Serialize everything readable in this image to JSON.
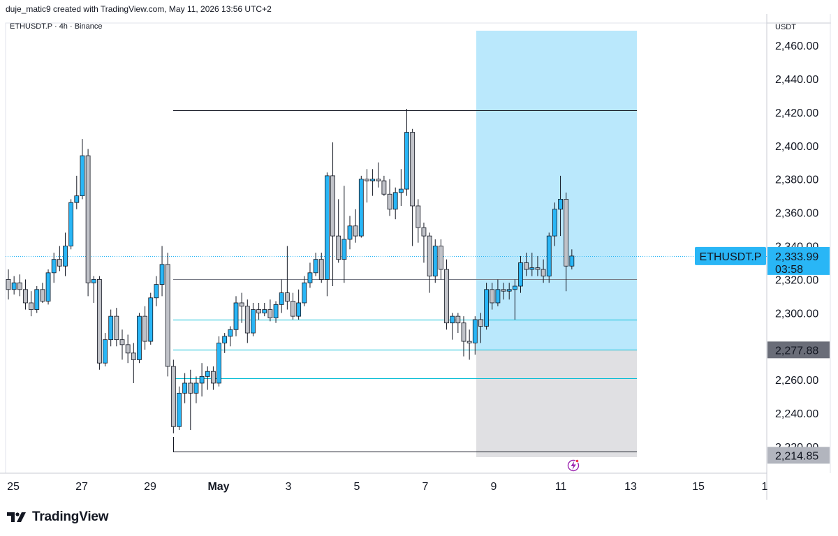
{
  "header": {
    "credit": "duje_matic9 created with TradingView.com, May 11, 2026 13:56 UTC+2"
  },
  "brand": {
    "name": "TradingView",
    "logo_icon": "tradingview-logo-icon"
  },
  "chart_data": {
    "type": "candlestick",
    "symbol_label": "ETHUSDT.P · 4h · Binance",
    "currency": "USDT",
    "ylim": [
      2208,
      2468
    ],
    "y_ticks": [
      "2,460.00",
      "2,440.00",
      "2,420.00",
      "2,400.00",
      "2,380.00",
      "2,360.00",
      "2,340.00",
      "2,320.00",
      "2,300.00",
      "2,280.00",
      "2,260.00",
      "2,240.00",
      "2,220.00"
    ],
    "y_tick_values": [
      2460,
      2440,
      2420,
      2400,
      2380,
      2360,
      2340,
      2320,
      2300,
      2280,
      2260,
      2240,
      2220
    ],
    "x_ticks": [
      {
        "label": "25",
        "bold": false
      },
      {
        "label": "27",
        "bold": false
      },
      {
        "label": "29",
        "bold": false
      },
      {
        "label": "May",
        "bold": true
      },
      {
        "label": "3",
        "bold": false
      },
      {
        "label": "5",
        "bold": false
      },
      {
        "label": "7",
        "bold": false
      },
      {
        "label": "9",
        "bold": false
      },
      {
        "label": "11",
        "bold": false
      },
      {
        "label": "13",
        "bold": false
      },
      {
        "label": "15",
        "bold": false
      },
      {
        "label": "1",
        "bold": false
      }
    ],
    "candles": [
      {
        "o": 2320,
        "h": 2326,
        "l": 2308,
        "c": 2314
      },
      {
        "o": 2314,
        "h": 2322,
        "l": 2311,
        "c": 2318
      },
      {
        "o": 2318,
        "h": 2323,
        "l": 2310,
        "c": 2314
      },
      {
        "o": 2314,
        "h": 2320,
        "l": 2302,
        "c": 2306
      },
      {
        "o": 2306,
        "h": 2313,
        "l": 2298,
        "c": 2302
      },
      {
        "o": 2302,
        "h": 2316,
        "l": 2300,
        "c": 2314
      },
      {
        "o": 2314,
        "h": 2318,
        "l": 2306,
        "c": 2307
      },
      {
        "o": 2307,
        "h": 2326,
        "l": 2305,
        "c": 2324
      },
      {
        "o": 2324,
        "h": 2336,
        "l": 2318,
        "c": 2332
      },
      {
        "o": 2332,
        "h": 2340,
        "l": 2325,
        "c": 2328
      },
      {
        "o": 2328,
        "h": 2348,
        "l": 2322,
        "c": 2340
      },
      {
        "o": 2340,
        "h": 2368,
        "l": 2338,
        "c": 2366
      },
      {
        "o": 2366,
        "h": 2382,
        "l": 2362,
        "c": 2370
      },
      {
        "o": 2370,
        "h": 2404,
        "l": 2368,
        "c": 2394
      },
      {
        "o": 2394,
        "h": 2398,
        "l": 2310,
        "c": 2318
      },
      {
        "o": 2318,
        "h": 2322,
        "l": 2306,
        "c": 2320
      },
      {
        "o": 2320,
        "h": 2322,
        "l": 2266,
        "c": 2270
      },
      {
        "o": 2270,
        "h": 2288,
        "l": 2268,
        "c": 2284
      },
      {
        "o": 2284,
        "h": 2302,
        "l": 2280,
        "c": 2298
      },
      {
        "o": 2298,
        "h": 2303,
        "l": 2280,
        "c": 2284
      },
      {
        "o": 2284,
        "h": 2290,
        "l": 2272,
        "c": 2281
      },
      {
        "o": 2281,
        "h": 2287,
        "l": 2270,
        "c": 2276
      },
      {
        "o": 2276,
        "h": 2282,
        "l": 2258,
        "c": 2272
      },
      {
        "o": 2272,
        "h": 2300,
        "l": 2270,
        "c": 2298
      },
      {
        "o": 2298,
        "h": 2304,
        "l": 2278,
        "c": 2283
      },
      {
        "o": 2283,
        "h": 2312,
        "l": 2281,
        "c": 2309
      },
      {
        "o": 2309,
        "h": 2322,
        "l": 2304,
        "c": 2317
      },
      {
        "o": 2317,
        "h": 2340,
        "l": 2310,
        "c": 2329
      },
      {
        "o": 2329,
        "h": 2336,
        "l": 2262,
        "c": 2268
      },
      {
        "o": 2268,
        "h": 2272,
        "l": 2228,
        "c": 2232
      },
      {
        "o": 2232,
        "h": 2256,
        "l": 2230,
        "c": 2252
      },
      {
        "o": 2252,
        "h": 2264,
        "l": 2246,
        "c": 2258
      },
      {
        "o": 2258,
        "h": 2266,
        "l": 2230,
        "c": 2252
      },
      {
        "o": 2252,
        "h": 2262,
        "l": 2246,
        "c": 2258
      },
      {
        "o": 2258,
        "h": 2270,
        "l": 2250,
        "c": 2262
      },
      {
        "o": 2262,
        "h": 2268,
        "l": 2254,
        "c": 2265
      },
      {
        "o": 2265,
        "h": 2268,
        "l": 2254,
        "c": 2258
      },
      {
        "o": 2258,
        "h": 2286,
        "l": 2256,
        "c": 2282
      },
      {
        "o": 2282,
        "h": 2288,
        "l": 2276,
        "c": 2286
      },
      {
        "o": 2286,
        "h": 2292,
        "l": 2280,
        "c": 2290
      },
      {
        "o": 2290,
        "h": 2310,
        "l": 2286,
        "c": 2306
      },
      {
        "o": 2306,
        "h": 2312,
        "l": 2294,
        "c": 2304
      },
      {
        "o": 2304,
        "h": 2308,
        "l": 2282,
        "c": 2288
      },
      {
        "o": 2288,
        "h": 2306,
        "l": 2286,
        "c": 2302
      },
      {
        "o": 2302,
        "h": 2306,
        "l": 2296,
        "c": 2300
      },
      {
        "o": 2300,
        "h": 2306,
        "l": 2298,
        "c": 2302
      },
      {
        "o": 2302,
        "h": 2308,
        "l": 2295,
        "c": 2297
      },
      {
        "o": 2297,
        "h": 2307,
        "l": 2294,
        "c": 2305
      },
      {
        "o": 2305,
        "h": 2320,
        "l": 2300,
        "c": 2312
      },
      {
        "o": 2312,
        "h": 2340,
        "l": 2302,
        "c": 2307
      },
      {
        "o": 2307,
        "h": 2312,
        "l": 2296,
        "c": 2298
      },
      {
        "o": 2298,
        "h": 2314,
        "l": 2296,
        "c": 2306
      },
      {
        "o": 2306,
        "h": 2322,
        "l": 2304,
        "c": 2318
      },
      {
        "o": 2318,
        "h": 2330,
        "l": 2315,
        "c": 2324
      },
      {
        "o": 2324,
        "h": 2336,
        "l": 2322,
        "c": 2332
      },
      {
        "o": 2332,
        "h": 2336,
        "l": 2318,
        "c": 2320
      },
      {
        "o": 2320,
        "h": 2384,
        "l": 2310,
        "c": 2382
      },
      {
        "o": 2382,
        "h": 2402,
        "l": 2316,
        "c": 2346
      },
      {
        "o": 2346,
        "h": 2368,
        "l": 2330,
        "c": 2332
      },
      {
        "o": 2332,
        "h": 2376,
        "l": 2318,
        "c": 2344
      },
      {
        "o": 2344,
        "h": 2358,
        "l": 2338,
        "c": 2352
      },
      {
        "o": 2352,
        "h": 2362,
        "l": 2342,
        "c": 2346
      },
      {
        "o": 2346,
        "h": 2382,
        "l": 2345,
        "c": 2380
      },
      {
        "o": 2380,
        "h": 2386,
        "l": 2366,
        "c": 2379
      },
      {
        "o": 2379,
        "h": 2386,
        "l": 2370,
        "c": 2380
      },
      {
        "o": 2380,
        "h": 2390,
        "l": 2375,
        "c": 2379
      },
      {
        "o": 2379,
        "h": 2382,
        "l": 2370,
        "c": 2371
      },
      {
        "o": 2371,
        "h": 2380,
        "l": 2358,
        "c": 2362
      },
      {
        "o": 2362,
        "h": 2375,
        "l": 2356,
        "c": 2372
      },
      {
        "o": 2372,
        "h": 2386,
        "l": 2364,
        "c": 2374
      },
      {
        "o": 2374,
        "h": 2422,
        "l": 2370,
        "c": 2408
      },
      {
        "o": 2408,
        "h": 2410,
        "l": 2340,
        "c": 2364
      },
      {
        "o": 2364,
        "h": 2368,
        "l": 2342,
        "c": 2351
      },
      {
        "o": 2351,
        "h": 2354,
        "l": 2330,
        "c": 2346
      },
      {
        "o": 2346,
        "h": 2348,
        "l": 2312,
        "c": 2322
      },
      {
        "o": 2322,
        "h": 2344,
        "l": 2318,
        "c": 2340
      },
      {
        "o": 2340,
        "h": 2344,
        "l": 2320,
        "c": 2326
      },
      {
        "o": 2326,
        "h": 2332,
        "l": 2290,
        "c": 2294
      },
      {
        "o": 2294,
        "h": 2300,
        "l": 2284,
        "c": 2298
      },
      {
        "o": 2298,
        "h": 2300,
        "l": 2288,
        "c": 2294
      },
      {
        "o": 2294,
        "h": 2298,
        "l": 2274,
        "c": 2283
      },
      {
        "o": 2283,
        "h": 2290,
        "l": 2272,
        "c": 2282
      },
      {
        "o": 2282,
        "h": 2298,
        "l": 2275,
        "c": 2296
      },
      {
        "o": 2296,
        "h": 2300,
        "l": 2282,
        "c": 2292
      },
      {
        "o": 2292,
        "h": 2318,
        "l": 2290,
        "c": 2314
      },
      {
        "o": 2314,
        "h": 2318,
        "l": 2302,
        "c": 2306
      },
      {
        "o": 2306,
        "h": 2320,
        "l": 2304,
        "c": 2314
      },
      {
        "o": 2314,
        "h": 2318,
        "l": 2308,
        "c": 2313
      },
      {
        "o": 2313,
        "h": 2318,
        "l": 2308,
        "c": 2314
      },
      {
        "o": 2314,
        "h": 2320,
        "l": 2296,
        "c": 2316
      },
      {
        "o": 2316,
        "h": 2334,
        "l": 2312,
        "c": 2330
      },
      {
        "o": 2330,
        "h": 2336,
        "l": 2322,
        "c": 2326
      },
      {
        "o": 2326,
        "h": 2336,
        "l": 2322,
        "c": 2327
      },
      {
        "o": 2327,
        "h": 2334,
        "l": 2322,
        "c": 2326
      },
      {
        "o": 2326,
        "h": 2332,
        "l": 2318,
        "c": 2322
      },
      {
        "o": 2322,
        "h": 2348,
        "l": 2318,
        "c": 2346
      },
      {
        "o": 2346,
        "h": 2366,
        "l": 2340,
        "c": 2362
      },
      {
        "o": 2362,
        "h": 2382,
        "l": 2346,
        "c": 2368
      },
      {
        "o": 2368,
        "h": 2372,
        "l": 2313,
        "c": 2328
      },
      {
        "o": 2328,
        "h": 2338,
        "l": 2326,
        "c": 2334
      }
    ],
    "horizontal_levels": [
      {
        "price": 2421,
        "from_date": 2.6,
        "to_date": 12.0,
        "color": "#131722"
      },
      {
        "price": 2320,
        "from_date": 2.6,
        "to_date": 12.0,
        "color": "#787b86"
      },
      {
        "price": 2296,
        "from_date": 2.6,
        "to_date": 12.0,
        "color": "#00bcd4"
      },
      {
        "price": 2278,
        "from_date": 2.6,
        "to_date": 12.0,
        "color": "#00bcd4"
      },
      {
        "price": 2261,
        "from_date": 2.6,
        "to_date": 12.0,
        "color": "#00bcd4"
      },
      {
        "price": 2217,
        "from_date": 2.6,
        "to_date": 12.0,
        "color": "#131722"
      }
    ],
    "position": {
      "from_date": 8.5,
      "to_date": 13.2,
      "target_price": 2466,
      "entry_price": 2277.88,
      "stop_price": 2213,
      "target_color": "#b3e5fc",
      "stop_color": "#e0e0e3"
    },
    "current_price": {
      "value": 2333.99,
      "label": "2,333.99",
      "countdown": "03:58",
      "symbol": "ETHUSDT.P",
      "color": "#29b6f6"
    },
    "price_tags": [
      {
        "value": 2277.88,
        "label": "2,277.88",
        "color": "#6a6d78"
      },
      {
        "value": 2214.85,
        "label": "2,214.85",
        "color": "#b2b5be"
      }
    ],
    "colors": {
      "bull": "#29b6f6",
      "bear": "#c0c2c8",
      "border": "#131722",
      "accent_line": "#9c27b0"
    },
    "grid": false
  }
}
